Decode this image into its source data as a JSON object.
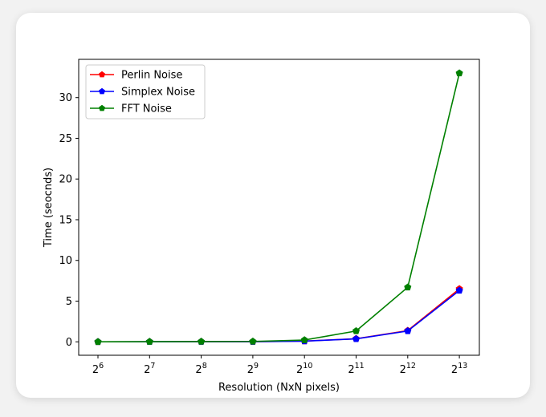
{
  "chart_data": {
    "type": "line",
    "title": "",
    "xlabel": "Resolution (NxN pixels)",
    "ylabel": "Time (seocnds)",
    "x_scale": "log2",
    "x": [
      64,
      128,
      256,
      512,
      1024,
      2048,
      4096,
      8192
    ],
    "x_tick_labels": [
      {
        "base": "2",
        "exp": "6"
      },
      {
        "base": "2",
        "exp": "7"
      },
      {
        "base": "2",
        "exp": "8"
      },
      {
        "base": "2",
        "exp": "9"
      },
      {
        "base": "2",
        "exp": "10"
      },
      {
        "base": "2",
        "exp": "11"
      },
      {
        "base": "2",
        "exp": "12"
      },
      {
        "base": "2",
        "exp": "13"
      }
    ],
    "y_ticks": [
      0,
      5,
      10,
      15,
      20,
      25,
      30
    ],
    "ylim": [
      -1.65,
      34.7
    ],
    "grid": false,
    "legend_position": "upper-left",
    "series": [
      {
        "name": "Perlin Noise",
        "color": "#ff0000",
        "values": [
          0.0,
          0.01,
          0.02,
          0.02,
          0.09,
          0.38,
          1.38,
          6.5
        ]
      },
      {
        "name": "Simplex Noise",
        "color": "#0000ff",
        "values": [
          0.0,
          0.01,
          0.02,
          0.02,
          0.08,
          0.36,
          1.33,
          6.3
        ]
      },
      {
        "name": "FFT Noise",
        "color": "#008000",
        "values": [
          0.0,
          0.02,
          0.03,
          0.05,
          0.22,
          1.33,
          6.7,
          33.0
        ]
      }
    ]
  }
}
